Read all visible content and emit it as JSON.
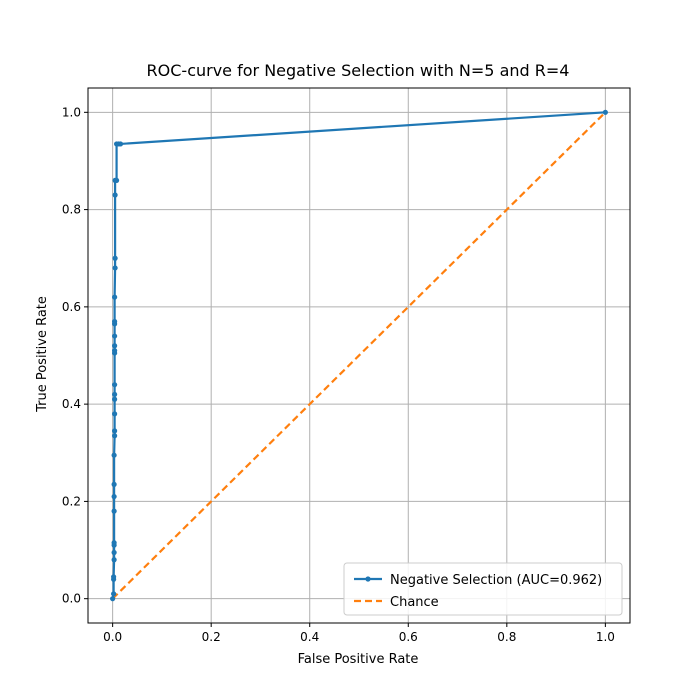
{
  "chart_data": {
    "type": "line",
    "title": "ROC-curve for Negative Selection with N=5 and R=4",
    "xlabel": "False Positive Rate",
    "ylabel": "True Positive Rate",
    "xlim": [
      -0.05,
      1.05
    ],
    "ylim": [
      -0.05,
      1.05
    ],
    "xticks": [
      "0.0",
      "0.2",
      "0.4",
      "0.6",
      "0.8",
      "1.0"
    ],
    "yticks": [
      "0.0",
      "0.2",
      "0.4",
      "0.6",
      "0.8",
      "1.0"
    ],
    "grid": true,
    "legend_position": "lower-right",
    "series": [
      {
        "name": "Negative Selection (AUC=0.962)",
        "color": "#1f77b4",
        "style": "solid",
        "markers": true,
        "points": [
          [
            0.0,
            0.0
          ],
          [
            0.002,
            0.01
          ],
          [
            0.002,
            0.04
          ],
          [
            0.002,
            0.045
          ],
          [
            0.003,
            0.08
          ],
          [
            0.003,
            0.095
          ],
          [
            0.003,
            0.11
          ],
          [
            0.003,
            0.115
          ],
          [
            0.003,
            0.18
          ],
          [
            0.003,
            0.21
          ],
          [
            0.003,
            0.235
          ],
          [
            0.003,
            0.295
          ],
          [
            0.004,
            0.335
          ],
          [
            0.004,
            0.345
          ],
          [
            0.004,
            0.38
          ],
          [
            0.004,
            0.41
          ],
          [
            0.004,
            0.42
          ],
          [
            0.004,
            0.44
          ],
          [
            0.004,
            0.505
          ],
          [
            0.004,
            0.51
          ],
          [
            0.004,
            0.52
          ],
          [
            0.004,
            0.54
          ],
          [
            0.004,
            0.565
          ],
          [
            0.004,
            0.57
          ],
          [
            0.004,
            0.62
          ],
          [
            0.005,
            0.68
          ],
          [
            0.005,
            0.7
          ],
          [
            0.005,
            0.83
          ],
          [
            0.005,
            0.86
          ],
          [
            0.008,
            0.86
          ],
          [
            0.008,
            0.935
          ],
          [
            0.012,
            0.935
          ],
          [
            0.016,
            0.935
          ],
          [
            1.0,
            1.0
          ]
        ]
      },
      {
        "name": "Chance",
        "color": "#ff7f0e",
        "style": "dashed",
        "markers": false,
        "points": [
          [
            0.0,
            0.0
          ],
          [
            1.0,
            1.0
          ]
        ]
      }
    ]
  }
}
